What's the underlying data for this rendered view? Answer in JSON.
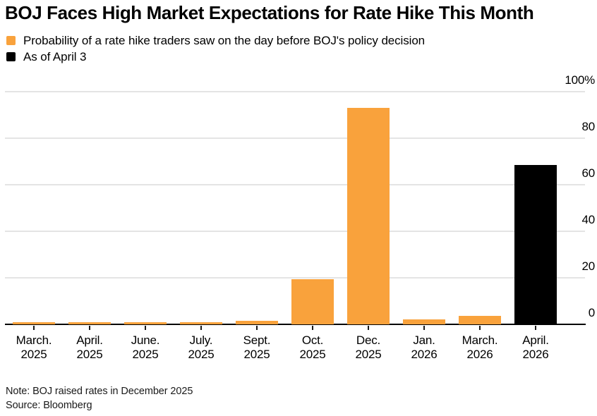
{
  "title": "BOJ Faces High Market Expectations for Rate Hike This Month",
  "legend": [
    {
      "label": "Probability of a rate hike traders saw on the day before BOJ's policy decision",
      "color": "#F9A23C"
    },
    {
      "label": "As of April 3",
      "color": "#000000"
    }
  ],
  "note": "Note: BOJ raised rates in December 2025",
  "source": "Source: Bloomberg",
  "colors": {
    "orange": "#F9A23C",
    "black": "#000000",
    "gridline": "#E4E4E4",
    "axis": "#000000"
  },
  "chart_data": {
    "type": "bar",
    "title": "BOJ Faces High Market Expectations for Rate Hike This Month",
    "categories": [
      "March. 2025",
      "April. 2025",
      "June. 2025",
      "July. 2025",
      "Sept. 2025",
      "Oct. 2025",
      "Dec. 2025",
      "Jan. 2026",
      "March. 2026",
      "April. 2026"
    ],
    "x_tick_lines": [
      [
        "March.",
        "2025"
      ],
      [
        "April.",
        "2025"
      ],
      [
        "June.",
        "2025"
      ],
      [
        "July.",
        "2025"
      ],
      [
        "Sept.",
        "2025"
      ],
      [
        "Oct.",
        "2025"
      ],
      [
        "Dec.",
        "2025"
      ],
      [
        "Jan.",
        "2026"
      ],
      [
        "March.",
        "2026"
      ],
      [
        "April.",
        "2026"
      ]
    ],
    "series": [
      {
        "name": "Probability of a rate hike traders saw on the day before BOJ's policy decision",
        "color": "#F9A23C",
        "values": [
          1,
          1,
          1,
          1,
          1.5,
          19.5,
          93,
          2,
          3.5,
          null
        ]
      },
      {
        "name": "As of April 3",
        "color": "#000000",
        "values": [
          null,
          null,
          null,
          null,
          null,
          null,
          null,
          null,
          null,
          68.5
        ]
      }
    ],
    "xlabel": "",
    "ylabel": "",
    "ylim": [
      0,
      100
    ],
    "yticks": [
      0,
      20,
      40,
      60,
      80,
      100
    ],
    "ytick_labels": [
      "0",
      "20",
      "40",
      "60",
      "80",
      "100%"
    ],
    "grid": true,
    "y_axis_side": "right",
    "legend_position": "top-left"
  }
}
